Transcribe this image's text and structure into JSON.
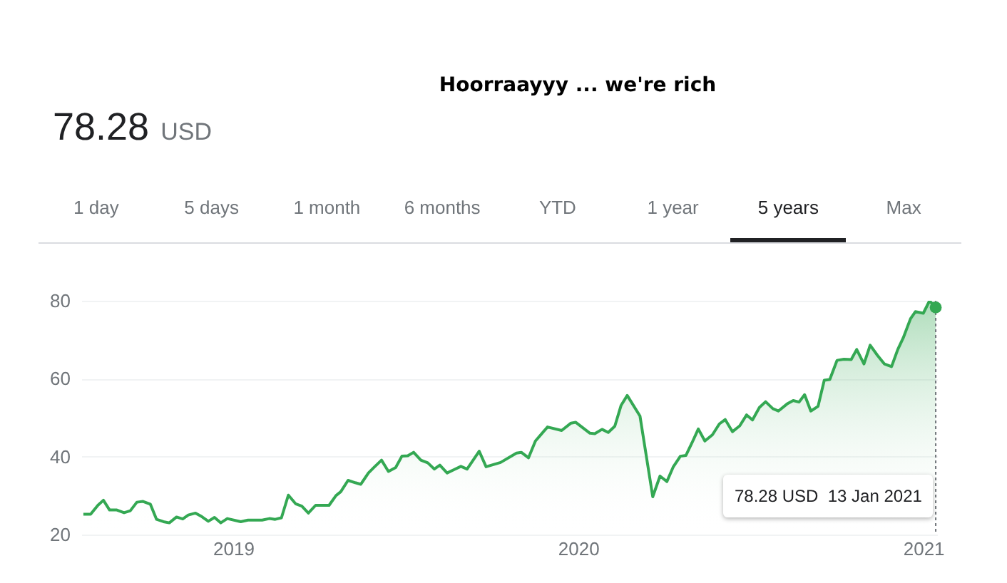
{
  "chart_data": {
    "type": "area",
    "title": "Hoorraayyy ... we're rich",
    "annotations": [
      "78.28",
      "USD",
      "1 day",
      "5 days",
      "1 month",
      "6 months",
      "YTD",
      "1 year",
      "5 years",
      "Max",
      "78.28 USD  13 Jan 2021"
    ],
    "x": [
      2018.566,
      2018.587,
      2018.608,
      2018.624,
      2018.642,
      2018.663,
      2018.684,
      2018.702,
      2018.721,
      2018.739,
      2018.76,
      2018.778,
      2018.798,
      2018.815,
      2018.836,
      2018.854,
      2018.87,
      2018.891,
      2018.909,
      2018.928,
      2018.946,
      2018.964,
      2018.983,
      2019.022,
      2019.043,
      2019.084,
      2019.105,
      2019.122,
      2019.14,
      2019.16,
      2019.181,
      2019.199,
      2019.218,
      2019.239,
      2019.278,
      2019.298,
      2019.312,
      2019.333,
      2019.354,
      2019.37,
      2019.392,
      2019.409,
      2019.43,
      2019.45,
      2019.471,
      2019.489,
      2019.506,
      2019.523,
      2019.544,
      2019.564,
      2019.583,
      2019.599,
      2019.62,
      2019.641,
      2019.66,
      2019.678,
      2019.713,
      2019.733,
      2019.775,
      2019.821,
      2019.835,
      2019.856,
      2019.876,
      2019.911,
      2019.952,
      2019.979,
      2019.993,
      2020.034,
      2020.048,
      2020.069,
      2020.087,
      2020.106,
      2020.124,
      2020.142,
      2020.179,
      2020.216,
      2020.237,
      2020.257,
      2020.275,
      2020.296,
      2020.312,
      2020.33,
      2020.348,
      2020.367,
      2020.389,
      2020.409,
      2020.426,
      2020.447,
      2020.468,
      2020.488,
      2020.505,
      2020.525,
      2020.543,
      2020.564,
      2020.58,
      2020.605,
      2020.623,
      2020.64,
      2020.656,
      2020.674,
      2020.695,
      2020.713,
      2020.729,
      2020.75,
      2020.77,
      2020.791,
      2020.807,
      2020.828,
      2020.846,
      2020.867,
      2020.887,
      2020.908,
      2020.926,
      2020.942,
      2020.963,
      2020.977,
      2021.0,
      2021.018,
      2021.036
    ],
    "series": [
      {
        "color": "#34a853",
        "values": [
          25.2,
          25.2,
          27.5,
          28.8,
          26.3,
          26.3,
          25.6,
          26.1,
          28.3,
          28.5,
          27.8,
          23.9,
          23.3,
          23.0,
          24.5,
          24.0,
          25.0,
          25.5,
          24.6,
          23.4,
          24.4,
          23.0,
          24.1,
          23.3,
          23.7,
          23.7,
          24.1,
          23.9,
          24.3,
          30.1,
          27.9,
          27.3,
          25.5,
          27.5,
          27.5,
          30.0,
          31.0,
          33.9,
          33.3,
          32.9,
          35.8,
          37.3,
          39.1,
          36.2,
          37.2,
          40.1,
          40.2,
          41.1,
          39.1,
          38.4,
          36.8,
          37.8,
          35.8,
          36.7,
          37.5,
          36.8,
          41.4,
          37.4,
          38.5,
          40.9,
          41.1,
          39.7,
          44.0,
          47.6,
          46.7,
          48.6,
          48.8,
          46.0,
          45.9,
          47.0,
          46.2,
          47.8,
          53.1,
          55.7,
          50.4,
          29.7,
          35.0,
          33.6,
          37.3,
          40.1,
          40.3,
          43.6,
          47.1,
          44.0,
          45.6,
          48.4,
          49.5,
          46.4,
          47.9,
          50.7,
          49.4,
          52.6,
          54.1,
          52.3,
          51.7,
          53.5,
          54.4,
          54.0,
          55.9,
          51.7,
          52.9,
          59.6,
          59.8,
          64.7,
          65.0,
          64.9,
          67.5,
          63.8,
          68.6,
          66.0,
          63.8,
          63.1,
          67.5,
          70.5,
          75.4,
          77.2,
          76.8,
          80.0,
          78.28
        ]
      },
      {
        "type": "scatter",
        "color": "#34a853",
        "x": [
          2021.036
        ],
        "values": [
          78.28
        ],
        "marker": "circle"
      }
    ],
    "xlim": [
      2018.56,
      2021.04
    ],
    "xticks": [
      2019,
      2020,
      2021
    ],
    "ylim": [
      20,
      80
    ],
    "yticks": [
      20,
      40,
      60,
      80
    ],
    "grid": "y",
    "ref_lines": [
      {
        "axis": "x",
        "value": 2021.036,
        "line_style": "dotted",
        "color": "#70757a"
      }
    ]
  }
}
